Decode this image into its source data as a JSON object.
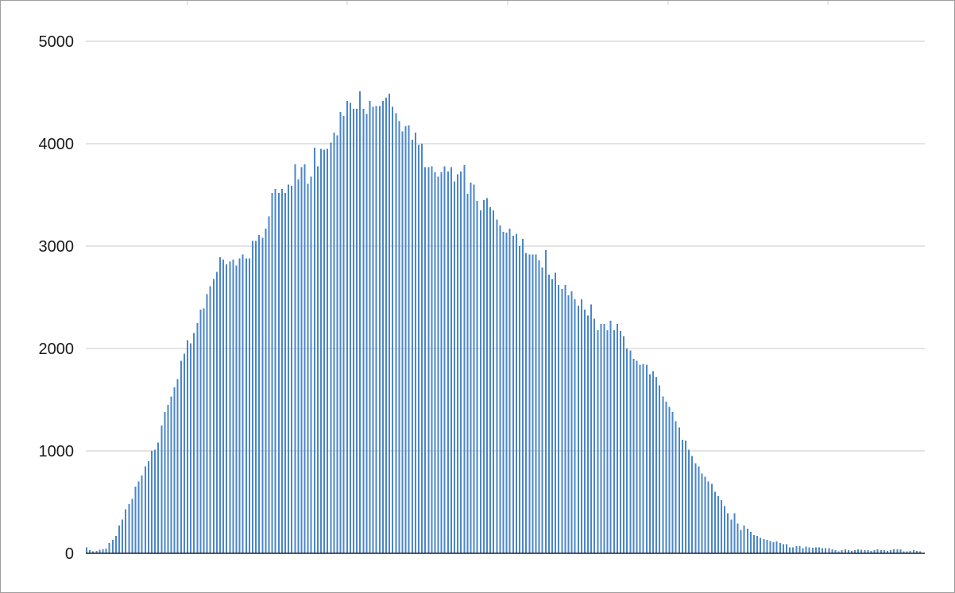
{
  "chart_data": {
    "type": "bar",
    "title": "",
    "xlabel": "",
    "ylabel": "",
    "ylim": [
      0,
      5000
    ],
    "yticks": [
      0,
      1000,
      2000,
      3000,
      4000,
      5000
    ],
    "ytick_labels": [
      "0",
      "1000",
      "2000",
      "3000",
      "4000",
      "5000"
    ],
    "grid": true,
    "legend": "none",
    "bar_color": "#4a86c8",
    "series": [
      {
        "values": [
          60,
          30,
          20,
          25,
          35,
          40,
          45,
          100,
          130,
          170,
          270,
          330,
          430,
          480,
          530,
          650,
          700,
          760,
          850,
          900,
          1000,
          1010,
          1080,
          1250,
          1380,
          1450,
          1530,
          1620,
          1700,
          1880,
          1950,
          2080,
          2050,
          2150,
          2250,
          2380,
          2390,
          2530,
          2610,
          2680,
          2750,
          2890,
          2870,
          2820,
          2850,
          2870,
          2810,
          2880,
          2920,
          2880,
          2880,
          3050,
          3050,
          3110,
          3080,
          3170,
          3290,
          3520,
          3560,
          3520,
          3560,
          3520,
          3600,
          3590,
          3800,
          3650,
          3770,
          3800,
          3610,
          3680,
          3960,
          3780,
          3950,
          3940,
          3950,
          4010,
          4110,
          4080,
          4310,
          4270,
          4420,
          4400,
          4340,
          4340,
          4510,
          4340,
          4290,
          4420,
          4360,
          4370,
          4370,
          4420,
          4450,
          4490,
          4360,
          4300,
          4220,
          4120,
          4170,
          4180,
          4040,
          4110,
          3990,
          4000,
          3770,
          3770,
          3780,
          3720,
          3680,
          3720,
          3780,
          3730,
          3770,
          3630,
          3700,
          3730,
          3790,
          3510,
          3620,
          3600,
          3440,
          3350,
          3450,
          3470,
          3380,
          3350,
          3260,
          3200,
          3140,
          3130,
          3170,
          3100,
          3120,
          3000,
          3070,
          2930,
          2920,
          2920,
          2920,
          2860,
          2790,
          2960,
          2720,
          2680,
          2740,
          2620,
          2580,
          2620,
          2520,
          2560,
          2480,
          2420,
          2480,
          2380,
          2320,
          2430,
          2290,
          2180,
          2240,
          2240,
          2180,
          2270,
          2180,
          2240,
          2170,
          2120,
          2000,
          1980,
          1900,
          1880,
          1840,
          1850,
          1840,
          1750,
          1780,
          1720,
          1640,
          1530,
          1480,
          1430,
          1380,
          1290,
          1230,
          1110,
          1100,
          1010,
          950,
          880,
          850,
          780,
          750,
          700,
          680,
          600,
          560,
          520,
          460,
          390,
          330,
          390,
          290,
          230,
          270,
          240,
          210,
          180,
          170,
          150,
          140,
          130,
          120,
          110,
          115,
          100,
          90,
          90,
          60,
          60,
          70,
          70,
          50,
          65,
          60,
          55,
          60,
          60,
          50,
          50,
          50,
          40,
          30,
          20,
          30,
          40,
          30,
          25,
          30,
          40,
          35,
          30,
          30,
          25,
          30,
          40,
          30,
          30,
          25,
          30,
          40,
          40,
          40,
          20,
          20,
          25,
          30,
          25,
          20
        ]
      }
    ]
  }
}
